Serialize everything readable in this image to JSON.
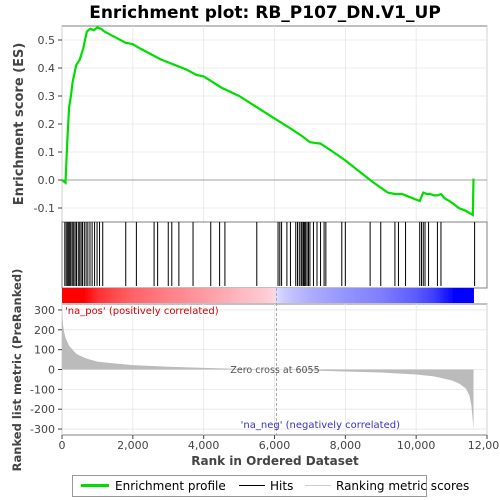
{
  "chart_data": {
    "type": "line",
    "title": "Enrichment plot: RB_P107_DN.V1_UP",
    "ylabel_top": "Enrichment score (ES)",
    "ylabel_bottom": "Ranked list metric (PreRanked)",
    "xlabel": "Rank in Ordered Dataset",
    "xlim": [
      0,
      12000
    ],
    "x_ticks": [
      0,
      2000,
      4000,
      6000,
      8000,
      10000,
      12000
    ],
    "x_tick_labels": [
      "0",
      "2,000",
      "4,000",
      "6,000",
      "8,000",
      "10,000",
      "12,000"
    ],
    "es_ylim": [
      -0.15,
      0.55
    ],
    "es_ticks": [
      -0.1,
      0.0,
      0.1,
      0.2,
      0.3,
      0.4,
      0.5
    ],
    "es_tick_labels": [
      "-0.1",
      "0.0",
      "0.1",
      "0.2",
      "0.3",
      "0.4",
      "0.5"
    ],
    "metric_ylim": [
      -330,
      330
    ],
    "metric_ticks": [
      -300,
      -200,
      -100,
      0,
      100,
      200,
      300
    ],
    "metric_tick_labels": [
      "-300",
      "-200",
      "-100",
      "0",
      "100",
      "200",
      "300"
    ],
    "enrichment_profile": {
      "name": "Enrichment profile",
      "color": "#00dd00",
      "x": [
        0,
        100,
        150,
        200,
        250,
        300,
        350,
        400,
        450,
        500,
        550,
        600,
        650,
        700,
        800,
        900,
        1000,
        1100,
        1200,
        1500,
        1800,
        2000,
        2200,
        2500,
        2800,
        3000,
        3200,
        3500,
        3800,
        4000,
        4500,
        5000,
        5500,
        6000,
        6500,
        6800,
        7000,
        7300,
        7600,
        8000,
        8400,
        8800,
        9200,
        9400,
        9600,
        9800,
        10000,
        10100,
        10200,
        10300,
        10400,
        10500,
        10600,
        10700,
        10800,
        11000,
        11200,
        11400,
        11600,
        11620
      ],
      "y": [
        0.0,
        -0.01,
        0.14,
        0.26,
        0.3,
        0.35,
        0.38,
        0.41,
        0.42,
        0.43,
        0.45,
        0.47,
        0.5,
        0.53,
        0.54,
        0.535,
        0.545,
        0.54,
        0.53,
        0.51,
        0.49,
        0.485,
        0.47,
        0.45,
        0.43,
        0.42,
        0.41,
        0.395,
        0.375,
        0.37,
        0.33,
        0.3,
        0.26,
        0.22,
        0.18,
        0.155,
        0.135,
        0.13,
        0.105,
        0.07,
        0.03,
        -0.01,
        -0.045,
        -0.05,
        -0.05,
        -0.06,
        -0.07,
        -0.075,
        -0.045,
        -0.05,
        -0.05,
        -0.055,
        -0.055,
        -0.05,
        -0.065,
        -0.08,
        -0.1,
        -0.11,
        -0.125,
        0.005
      ]
    },
    "hits": {
      "name": "Hits",
      "x": [
        80,
        120,
        160,
        190,
        220,
        250,
        290,
        330,
        370,
        410,
        460,
        500,
        540,
        580,
        630,
        680,
        730,
        790,
        850,
        920,
        990,
        1060,
        1150,
        1800,
        2100,
        2600,
        2700,
        3000,
        3100,
        3300,
        3700,
        4200,
        4450,
        4600,
        5500,
        6100,
        6150,
        6200,
        6350,
        6450,
        6600,
        6650,
        6700,
        6750,
        6780,
        6820,
        6850,
        6880,
        6920,
        6960,
        7000,
        7100,
        7200,
        7300,
        7400,
        7450,
        7900,
        8000,
        8700,
        9000,
        9400,
        9500,
        9700,
        10100,
        10150,
        10200,
        10250,
        10350,
        10600,
        10700,
        11650
      ]
    },
    "ranking_metric": {
      "name": "Ranking metric scores",
      "color": "#bbbbbb",
      "x": [
        0,
        30,
        60,
        100,
        150,
        200,
        300,
        400,
        500,
        700,
        1000,
        1500,
        2000,
        3000,
        4000,
        5000,
        6055,
        7000,
        8000,
        9000,
        9500,
        10000,
        10500,
        11000,
        11200,
        11400,
        11500,
        11560,
        11600,
        11620
      ],
      "y": [
        300,
        220,
        190,
        160,
        140,
        120,
        100,
        80,
        70,
        55,
        40,
        30,
        22,
        14,
        8,
        3,
        0,
        -5,
        -10,
        -15,
        -20,
        -25,
        -35,
        -55,
        -70,
        -95,
        -130,
        -180,
        -260,
        -300
      ]
    },
    "annotations": {
      "zero_cross": "Zero cross at 6055",
      "pos_label": "'na_pos' (positively correlated)",
      "neg_label": "'na_neg' (negatively correlated)"
    },
    "legend_items": [
      "Enrichment profile",
      "Hits",
      "Ranking metric scores"
    ]
  }
}
